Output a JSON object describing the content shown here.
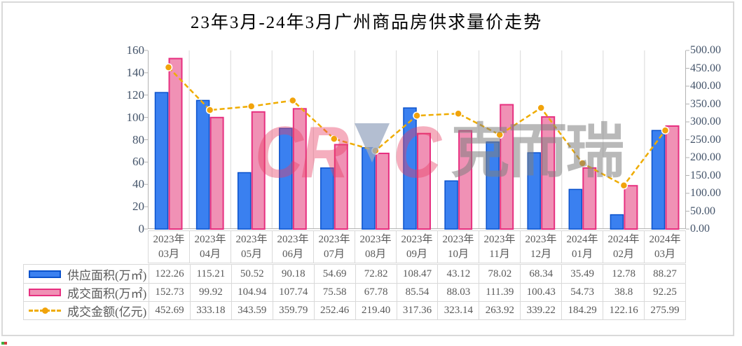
{
  "title": "23年3月-24年3月广州商品房供求量价走势",
  "watermark": {
    "part1": "CR",
    "part2": "C",
    "cjk": "克而瑞"
  },
  "chart_data": {
    "type": "combo",
    "title": "23年3月-24年3月广州商品房供求量价走势",
    "categories": [
      "2023年03月",
      "2023年04月",
      "2023年05月",
      "2023年06月",
      "2023年07月",
      "2023年08月",
      "2023年09月",
      "2023年10月",
      "2023年11月",
      "2023年12月",
      "2024年01月",
      "2024年02月",
      "2024年03月"
    ],
    "series": [
      {
        "name": "供应面积(万㎡)",
        "type": "bar",
        "axis": "left",
        "values": [
          "122.26",
          "115.21",
          "50.52",
          "90.18",
          "54.69",
          "72.82",
          "108.47",
          "43.12",
          "78.02",
          "68.34",
          "35.49",
          "12.78",
          "88.27"
        ],
        "fill": "#3A80F0",
        "stroke": "#0A52CC"
      },
      {
        "name": "成交面积(万㎡)",
        "type": "bar",
        "axis": "left",
        "values": [
          "152.73",
          "99.92",
          "104.94",
          "107.74",
          "75.58",
          "67.78",
          "85.54",
          "88.03",
          "111.39",
          "100.43",
          "54.73",
          "38.8",
          "92.25"
        ],
        "fill": "#F091B5",
        "stroke": "#E73080"
      },
      {
        "name": "成交金额(亿元)",
        "type": "line",
        "axis": "right",
        "values": [
          "452.69",
          "333.18",
          "343.59",
          "359.79",
          "252.46",
          "219.40",
          "317.36",
          "323.14",
          "263.92",
          "339.22",
          "184.29",
          "122.16",
          "275.99"
        ],
        "color": "#EFAC00",
        "marker": "#F1A30B"
      }
    ],
    "left_axis": {
      "min": 0,
      "max": 160,
      "ticks": [
        "0",
        "20",
        "40",
        "60",
        "80",
        "100",
        "120",
        "140",
        "160"
      ]
    },
    "right_axis": {
      "min": 0,
      "max": 500,
      "ticks": [
        "0.00",
        "50.00",
        "100.00",
        "150.00",
        "200.00",
        "250.00",
        "300.00",
        "350.00",
        "400.00",
        "450.00",
        "500.00"
      ]
    },
    "grid": "vertical-only",
    "legend_position": "bottom-table",
    "colors": {
      "gridline": "#D9D9D9",
      "axis_line": "#B3B3B3",
      "axis_text": "#44546A",
      "label_text": "#595959",
      "table_border": "#D9D9D9"
    }
  }
}
